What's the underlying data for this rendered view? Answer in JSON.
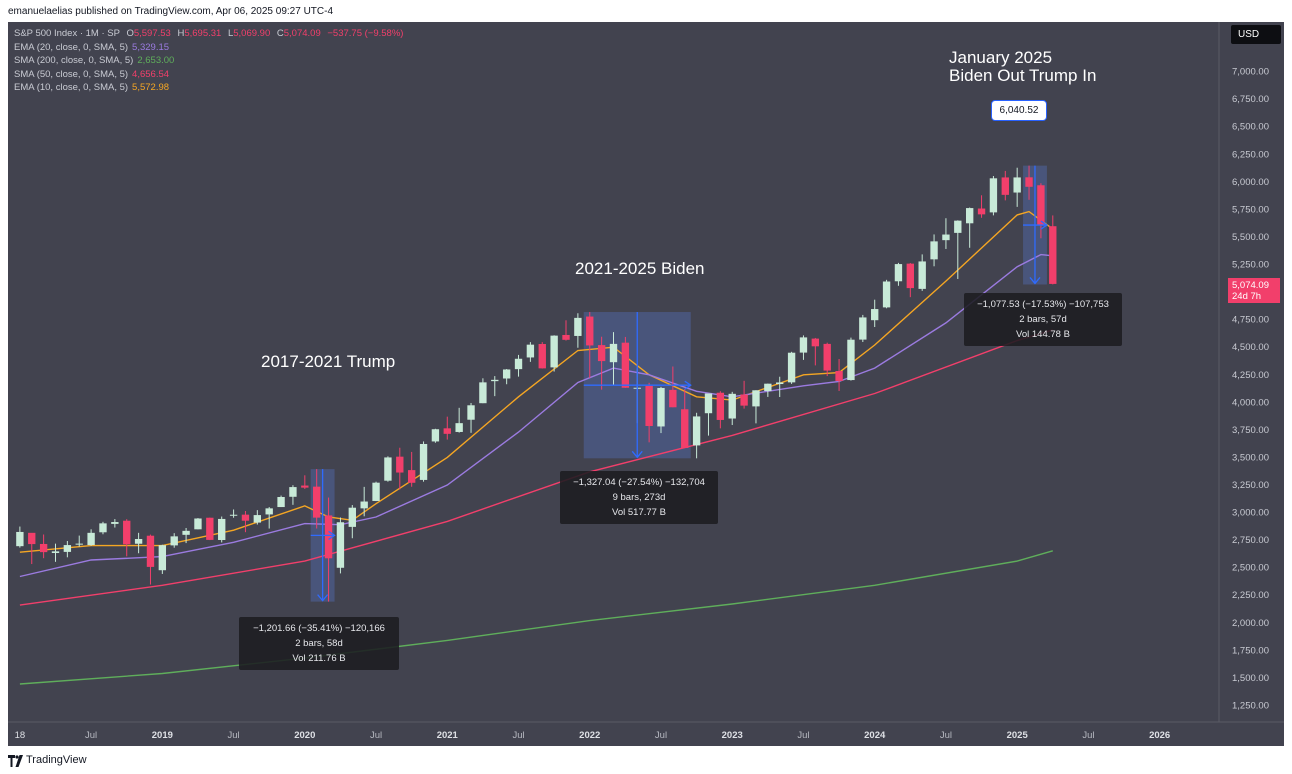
{
  "header": {
    "publisher_text": "emanuelaelias published on TradingView.com, Apr 06, 2025 09:27 UTC-4"
  },
  "legend": {
    "main": {
      "name": "S&P 500 Index · 1M · SP",
      "o_label": "O",
      "o": "5,597.53",
      "h_label": "H",
      "h": "5,695.31",
      "l_label": "L",
      "l": "5,069.90",
      "c_label": "C",
      "c": "5,074.09",
      "change": "−537.75 (−9.58%)"
    },
    "indicators": [
      {
        "label": "EMA (20, close, 0, SMA, 5)",
        "value": "5,329.15",
        "color": "#9b7be0"
      },
      {
        "label": "SMA (200, close, 0, SMA, 5)",
        "value": "2,653.00",
        "color": "#5fae5b"
      },
      {
        "label": "SMA (50, close, 0, SMA, 5)",
        "value": "4,656.54",
        "color": "#f23f6b"
      },
      {
        "label": "EMA (10, close, 0, SMA, 5)",
        "value": "5,572.98",
        "color": "#f5a623"
      }
    ]
  },
  "currency_button": "USD",
  "annotations": {
    "trump": "2017-2021 Trump",
    "biden": "2021-2025 Biden",
    "jan2025_line1": "January 2025",
    "jan2025_line2": "Biden Out Trump In"
  },
  "price_callout": "6,040.52",
  "last_price": {
    "price": "5,074.09",
    "countdown": "24d 7h"
  },
  "measures": {
    "m2020": {
      "line1": "−1,201.66 (−35.41%) −120,166",
      "line2": "2 bars, 58d",
      "line3": "Vol 211.76 B"
    },
    "m2022": {
      "line1": "−1,327.04 (−27.54%) −132,704",
      "line2": "9 bars, 273d",
      "line3": "Vol 517.77 B"
    },
    "m2025": {
      "line1": "−1,077.53 (−17.53%) −107,753",
      "line2": "2 bars, 57d",
      "line3": "Vol 144.78 B"
    }
  },
  "footer": {
    "brand": "TradingView"
  },
  "colors": {
    "background": "#42434f",
    "up_candle": "#c8ead8",
    "down_candle": "#f23f6b",
    "measure_fill": "#5b7bd9",
    "measure_arrow": "#2f6bff"
  },
  "chart_data": {
    "type": "candlestick",
    "title": "S&P 500 Index · 1M · SP",
    "y_axis": {
      "side": "right",
      "scale": "linear",
      "range": [
        1100,
        7450
      ],
      "ticks": [
        "7,000.00",
        "6,750.00",
        "6,500.00",
        "6,250.00",
        "6,000.00",
        "5,750.00",
        "5,500.00",
        "5,250.00",
        "5,000.00",
        "4,750.00",
        "4,500.00",
        "4,250.00",
        "4,000.00",
        "3,750.00",
        "3,500.00",
        "3,250.00",
        "3,000.00",
        "2,750.00",
        "2,500.00",
        "2,250.00",
        "2,000.00",
        "1,750.00",
        "1,500.00",
        "1,250.00"
      ]
    },
    "x_axis": {
      "range": [
        "2017-12",
        "2026-06"
      ],
      "ticks": [
        {
          "date": "2018-01",
          "label": "18"
        },
        {
          "date": "2018-07",
          "label": "Jul"
        },
        {
          "date": "2019-01",
          "label": "2019"
        },
        {
          "date": "2019-07",
          "label": "Jul"
        },
        {
          "date": "2020-01",
          "label": "2020"
        },
        {
          "date": "2020-07",
          "label": "Jul"
        },
        {
          "date": "2021-01",
          "label": "2021"
        },
        {
          "date": "2021-07",
          "label": "Jul"
        },
        {
          "date": "2022-01",
          "label": "2022"
        },
        {
          "date": "2022-07",
          "label": "Jul"
        },
        {
          "date": "2023-01",
          "label": "2023"
        },
        {
          "date": "2023-07",
          "label": "Jul"
        },
        {
          "date": "2024-01",
          "label": "2024"
        },
        {
          "date": "2024-07",
          "label": "Jul"
        },
        {
          "date": "2025-01",
          "label": "2025"
        },
        {
          "date": "2025-07",
          "label": "Jul"
        },
        {
          "date": "2026-01",
          "label": "2026"
        }
      ]
    },
    "candles": [
      {
        "d": "2018-01",
        "o": 2695,
        "h": 2873,
        "l": 2682,
        "c": 2824
      },
      {
        "d": "2018-02",
        "o": 2816,
        "h": 2789,
        "l": 2533,
        "c": 2714
      },
      {
        "d": "2018-03",
        "o": 2715,
        "h": 2801,
        "l": 2586,
        "c": 2641
      },
      {
        "d": "2018-04",
        "o": 2633,
        "h": 2718,
        "l": 2553,
        "c": 2648
      },
      {
        "d": "2018-05",
        "o": 2643,
        "h": 2742,
        "l": 2594,
        "c": 2705
      },
      {
        "d": "2018-06",
        "o": 2718,
        "h": 2791,
        "l": 2691,
        "c": 2718
      },
      {
        "d": "2018-07",
        "o": 2705,
        "h": 2848,
        "l": 2698,
        "c": 2816
      },
      {
        "d": "2018-08",
        "o": 2821,
        "h": 2916,
        "l": 2803,
        "c": 2902
      },
      {
        "d": "2018-09",
        "o": 2897,
        "h": 2941,
        "l": 2864,
        "c": 2914
      },
      {
        "d": "2018-10",
        "o": 2926,
        "h": 2940,
        "l": 2603,
        "c": 2712
      },
      {
        "d": "2018-11",
        "o": 2717,
        "h": 2816,
        "l": 2631,
        "c": 2760
      },
      {
        "d": "2018-12",
        "o": 2790,
        "h": 2800,
        "l": 2347,
        "c": 2507
      },
      {
        "d": "2019-01",
        "o": 2477,
        "h": 2708,
        "l": 2443,
        "c": 2704
      },
      {
        "d": "2019-02",
        "o": 2702,
        "h": 2813,
        "l": 2681,
        "c": 2784
      },
      {
        "d": "2019-03",
        "o": 2798,
        "h": 2860,
        "l": 2723,
        "c": 2834
      },
      {
        "d": "2019-04",
        "o": 2848,
        "h": 2950,
        "l": 2848,
        "c": 2946
      },
      {
        "d": "2019-05",
        "o": 2953,
        "h": 2954,
        "l": 2750,
        "c": 2752
      },
      {
        "d": "2019-06",
        "o": 2751,
        "h": 2964,
        "l": 2729,
        "c": 2942
      },
      {
        "d": "2019-07",
        "o": 2971,
        "h": 3028,
        "l": 2953,
        "c": 2980
      },
      {
        "d": "2019-08",
        "o": 2981,
        "h": 3014,
        "l": 2822,
        "c": 2926
      },
      {
        "d": "2019-09",
        "o": 2909,
        "h": 3022,
        "l": 2891,
        "c": 2977
      },
      {
        "d": "2019-10",
        "o": 2983,
        "h": 3050,
        "l": 2855,
        "c": 3038
      },
      {
        "d": "2019-11",
        "o": 3050,
        "h": 3154,
        "l": 3050,
        "c": 3141
      },
      {
        "d": "2019-12",
        "o": 3143,
        "h": 3248,
        "l": 3070,
        "c": 3231
      },
      {
        "d": "2020-01",
        "o": 3245,
        "h": 3338,
        "l": 3214,
        "c": 3226
      },
      {
        "d": "2020-02",
        "o": 3235,
        "h": 3394,
        "l": 2855,
        "c": 2954
      },
      {
        "d": "2020-03",
        "o": 2974,
        "h": 3136,
        "l": 2192,
        "c": 2585
      },
      {
        "d": "2020-04",
        "o": 2499,
        "h": 2955,
        "l": 2448,
        "c": 2912
      },
      {
        "d": "2020-05",
        "o": 2870,
        "h": 3068,
        "l": 2767,
        "c": 3044
      },
      {
        "d": "2020-06",
        "o": 3038,
        "h": 3233,
        "l": 2966,
        "c": 3100
      },
      {
        "d": "2020-07",
        "o": 3105,
        "h": 3280,
        "l": 3104,
        "c": 3271
      },
      {
        "d": "2020-08",
        "o": 3289,
        "h": 3510,
        "l": 3280,
        "c": 3500
      },
      {
        "d": "2020-09",
        "o": 3507,
        "h": 3588,
        "l": 3210,
        "c": 3363
      },
      {
        "d": "2020-10",
        "o": 3385,
        "h": 3550,
        "l": 3234,
        "c": 3270
      },
      {
        "d": "2020-11",
        "o": 3296,
        "h": 3645,
        "l": 3280,
        "c": 3622
      },
      {
        "d": "2020-12",
        "o": 3645,
        "h": 3760,
        "l": 3633,
        "c": 3756
      },
      {
        "d": "2021-01",
        "o": 3764,
        "h": 3870,
        "l": 3662,
        "c": 3714
      },
      {
        "d": "2021-02",
        "o": 3731,
        "h": 3950,
        "l": 3725,
        "c": 3811
      },
      {
        "d": "2021-03",
        "o": 3842,
        "h": 3994,
        "l": 3723,
        "c": 3973
      },
      {
        "d": "2021-04",
        "o": 3992,
        "h": 4218,
        "l": 3992,
        "c": 4181
      },
      {
        "d": "2021-05",
        "o": 4192,
        "h": 4238,
        "l": 4056,
        "c": 4204
      },
      {
        "d": "2021-06",
        "o": 4216,
        "h": 4302,
        "l": 4164,
        "c": 4298
      },
      {
        "d": "2021-07",
        "o": 4301,
        "h": 4430,
        "l": 4233,
        "c": 4395
      },
      {
        "d": "2021-08",
        "o": 4407,
        "h": 4546,
        "l": 4367,
        "c": 4523
      },
      {
        "d": "2021-09",
        "o": 4529,
        "h": 4546,
        "l": 4306,
        "c": 4308
      },
      {
        "d": "2021-10",
        "o": 4317,
        "h": 4608,
        "l": 4279,
        "c": 4605
      },
      {
        "d": "2021-11",
        "o": 4611,
        "h": 4744,
        "l": 4560,
        "c": 4567
      },
      {
        "d": "2021-12",
        "o": 4602,
        "h": 4808,
        "l": 4495,
        "c": 4766
      },
      {
        "d": "2022-01",
        "o": 4778,
        "h": 4819,
        "l": 4222,
        "c": 4516
      },
      {
        "d": "2022-02",
        "o": 4519,
        "h": 4595,
        "l": 4115,
        "c": 4374
      },
      {
        "d": "2022-03",
        "o": 4364,
        "h": 4637,
        "l": 4157,
        "c": 4530
      },
      {
        "d": "2022-04",
        "o": 4541,
        "h": 4593,
        "l": 4131,
        "c": 4132
      },
      {
        "d": "2022-05",
        "o": 4131,
        "h": 4307,
        "l": 3811,
        "c": 4132
      },
      {
        "d": "2022-06",
        "o": 4149,
        "h": 4177,
        "l": 3637,
        "c": 3785
      },
      {
        "d": "2022-07",
        "o": 3781,
        "h": 4140,
        "l": 3721,
        "c": 4130
      },
      {
        "d": "2022-08",
        "o": 4113,
        "h": 4325,
        "l": 3955,
        "c": 3955
      },
      {
        "d": "2022-09",
        "o": 3937,
        "h": 4120,
        "l": 3584,
        "c": 3586
      },
      {
        "d": "2022-10",
        "o": 3609,
        "h": 3905,
        "l": 3492,
        "c": 3872
      },
      {
        "d": "2022-11",
        "o": 3901,
        "h": 4080,
        "l": 3698,
        "c": 4080
      },
      {
        "d": "2022-12",
        "o": 4087,
        "h": 4101,
        "l": 3764,
        "c": 3840
      },
      {
        "d": "2023-01",
        "o": 3853,
        "h": 4095,
        "l": 3794,
        "c": 4077
      },
      {
        "d": "2023-02",
        "o": 4071,
        "h": 4195,
        "l": 3943,
        "c": 3970
      },
      {
        "d": "2023-03",
        "o": 3963,
        "h": 4110,
        "l": 3809,
        "c": 4109
      },
      {
        "d": "2023-04",
        "o": 4102,
        "h": 4170,
        "l": 4049,
        "c": 4169
      },
      {
        "d": "2023-05",
        "o": 4166,
        "h": 4232,
        "l": 4048,
        "c": 4180
      },
      {
        "d": "2023-06",
        "o": 4181,
        "h": 4458,
        "l": 4167,
        "c": 4450
      },
      {
        "d": "2023-07",
        "o": 4451,
        "h": 4607,
        "l": 4385,
        "c": 4589
      },
      {
        "d": "2023-08",
        "o": 4578,
        "h": 4584,
        "l": 4335,
        "c": 4508
      },
      {
        "d": "2023-09",
        "o": 4530,
        "h": 4541,
        "l": 4238,
        "c": 4288
      },
      {
        "d": "2023-10",
        "o": 4284,
        "h": 4393,
        "l": 4103,
        "c": 4194
      },
      {
        "d": "2023-11",
        "o": 4202,
        "h": 4587,
        "l": 4197,
        "c": 4568
      },
      {
        "d": "2023-12",
        "o": 4569,
        "h": 4793,
        "l": 4547,
        "c": 4770
      },
      {
        "d": "2024-01",
        "o": 4745,
        "h": 4931,
        "l": 4683,
        "c": 4846
      },
      {
        "d": "2024-02",
        "o": 4861,
        "h": 5111,
        "l": 4853,
        "c": 5096
      },
      {
        "d": "2024-03",
        "o": 5098,
        "h": 5265,
        "l": 5057,
        "c": 5254
      },
      {
        "d": "2024-04",
        "o": 5258,
        "h": 5264,
        "l": 4954,
        "c": 5036
      },
      {
        "d": "2024-05",
        "o": 5029,
        "h": 5342,
        "l": 5011,
        "c": 5278
      },
      {
        "d": "2024-06",
        "o": 5297,
        "h": 5523,
        "l": 5234,
        "c": 5460
      },
      {
        "d": "2024-07",
        "o": 5471,
        "h": 5670,
        "l": 5391,
        "c": 5522
      },
      {
        "d": "2024-08",
        "o": 5537,
        "h": 5651,
        "l": 5119,
        "c": 5648
      },
      {
        "d": "2024-09",
        "o": 5624,
        "h": 5767,
        "l": 5402,
        "c": 5762
      },
      {
        "d": "2024-10",
        "o": 5758,
        "h": 5878,
        "l": 5674,
        "c": 5705
      },
      {
        "d": "2024-11",
        "o": 5723,
        "h": 6053,
        "l": 5696,
        "c": 6032
      },
      {
        "d": "2024-12",
        "o": 6040,
        "h": 6099,
        "l": 5832,
        "c": 5882
      },
      {
        "d": "2025-01",
        "o": 5903,
        "h": 6128,
        "l": 5773,
        "c": 6040
      },
      {
        "d": "2025-02",
        "o": 6041,
        "h": 6147,
        "l": 5837,
        "c": 5955
      },
      {
        "d": "2025-03",
        "o": 5969,
        "h": 5987,
        "l": 5488,
        "c": 5612
      },
      {
        "d": "2025-04",
        "o": 5597.53,
        "h": 5695.31,
        "l": 5069.9,
        "c": 5074.09
      }
    ],
    "series": [
      {
        "name": "EMA (10, close, 0, SMA, 5)",
        "color": "#f5a623",
        "points": [
          [
            "2018-01",
            2640
          ],
          [
            "2018-07",
            2700
          ],
          [
            "2019-01",
            2700
          ],
          [
            "2019-07",
            2840
          ],
          [
            "2020-01",
            3060
          ],
          [
            "2020-03",
            2960
          ],
          [
            "2020-05",
            2930
          ],
          [
            "2020-07",
            3080
          ],
          [
            "2021-01",
            3500
          ],
          [
            "2021-07",
            4050
          ],
          [
            "2021-12",
            4470
          ],
          [
            "2022-03",
            4500
          ],
          [
            "2022-06",
            4250
          ],
          [
            "2022-10",
            4050
          ],
          [
            "2023-01",
            4020
          ],
          [
            "2023-07",
            4250
          ],
          [
            "2023-10",
            4270
          ],
          [
            "2024-01",
            4520
          ],
          [
            "2024-07",
            5100
          ],
          [
            "2025-01",
            5700
          ],
          [
            "2025-02",
            5730
          ],
          [
            "2025-04",
            5573
          ]
        ]
      },
      {
        "name": "EMA (20, close, 0, SMA, 5)",
        "color": "#9b7be0",
        "points": [
          [
            "2018-01",
            2420
          ],
          [
            "2018-07",
            2570
          ],
          [
            "2019-01",
            2600
          ],
          [
            "2019-07",
            2730
          ],
          [
            "2020-01",
            2900
          ],
          [
            "2020-04",
            2890
          ],
          [
            "2020-07",
            2960
          ],
          [
            "2021-01",
            3250
          ],
          [
            "2021-07",
            3730
          ],
          [
            "2021-12",
            4180
          ],
          [
            "2022-03",
            4310
          ],
          [
            "2022-06",
            4250
          ],
          [
            "2022-10",
            4100
          ],
          [
            "2023-01",
            4050
          ],
          [
            "2023-07",
            4150
          ],
          [
            "2023-10",
            4190
          ],
          [
            "2024-01",
            4310
          ],
          [
            "2024-07",
            4720
          ],
          [
            "2025-01",
            5230
          ],
          [
            "2025-03",
            5340
          ],
          [
            "2025-04",
            5329
          ]
        ]
      },
      {
        "name": "SMA (50, close, 0, SMA, 5)",
        "color": "#f23f6b",
        "points": [
          [
            "2018-01",
            2160
          ],
          [
            "2019-01",
            2340
          ],
          [
            "2020-01",
            2560
          ],
          [
            "2021-01",
            2920
          ],
          [
            "2022-01",
            3370
          ],
          [
            "2023-01",
            3700
          ],
          [
            "2024-01",
            4080
          ],
          [
            "2025-01",
            4560
          ],
          [
            "2025-04",
            4657
          ]
        ]
      },
      {
        "name": "SMA (200, close, 0, SMA, 5)",
        "color": "#5fae5b",
        "points": [
          [
            "2018-01",
            1445
          ],
          [
            "2019-01",
            1540
          ],
          [
            "2020-01",
            1680
          ],
          [
            "2021-01",
            1840
          ],
          [
            "2022-01",
            2020
          ],
          [
            "2023-01",
            2170
          ],
          [
            "2024-01",
            2340
          ],
          [
            "2025-01",
            2560
          ],
          [
            "2025-04",
            2653
          ]
        ]
      }
    ],
    "measures": [
      {
        "from_date": "2020-02",
        "to_date": "2020-03",
        "from_price": 3394,
        "to_price": 2192
      },
      {
        "from_date": "2022-01",
        "to_date": "2022-09",
        "from_price": 4819,
        "to_price": 3492
      },
      {
        "from_date": "2025-02",
        "to_date": "2025-03",
        "from_price": 6147,
        "to_price": 5069
      }
    ]
  }
}
